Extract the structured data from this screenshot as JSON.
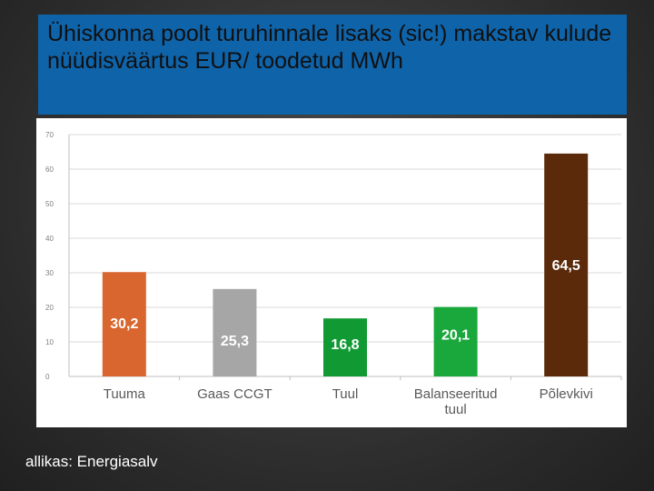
{
  "title": "Ühiskonna poolt turuhinnale lisaks (sic!) makstav kulude nüüdisväärtus EUR/ toodetud MWh",
  "source": "allikas: Energiasalv",
  "chart_data": {
    "type": "bar",
    "categories": [
      "Tuuma",
      "Gaas CCGT",
      "Tuul",
      "Balanseeritud tuul",
      "Põlevkivi"
    ],
    "values": [
      30.2,
      25.3,
      16.8,
      20.1,
      64.5
    ],
    "value_labels": [
      "30,2",
      "25,3",
      "16,8",
      "20,1",
      "64,5"
    ],
    "bar_colors": [
      "#d9662e",
      "#a6a6a6",
      "#119a33",
      "#1aa83c",
      "#5a2a0a"
    ],
    "label_colors": [
      "#ffffff",
      "#ffffff",
      "#ffffff",
      "#ffffff",
      "#ffffff"
    ],
    "ylim": [
      0,
      70
    ],
    "yticks": [
      0,
      10,
      20,
      30,
      40,
      50,
      60,
      70
    ],
    "grid": true,
    "xlabel": "",
    "ylabel": ""
  }
}
